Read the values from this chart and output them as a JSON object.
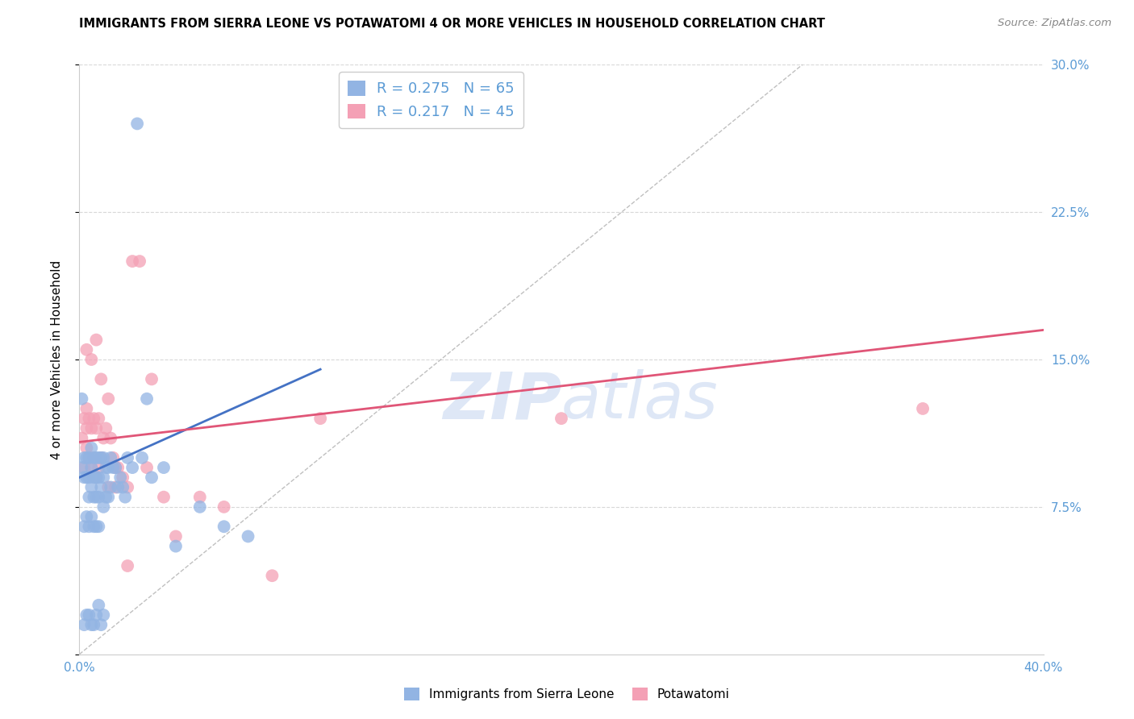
{
  "title": "IMMIGRANTS FROM SIERRA LEONE VS POTAWATOMI 4 OR MORE VEHICLES IN HOUSEHOLD CORRELATION CHART",
  "source": "Source: ZipAtlas.com",
  "ylabel": "4 or more Vehicles in Household",
  "xlim": [
    0.0,
    0.4
  ],
  "ylim": [
    0.0,
    0.3
  ],
  "xticks": [
    0.0,
    0.05,
    0.1,
    0.15,
    0.2,
    0.25,
    0.3,
    0.35,
    0.4
  ],
  "yticks": [
    0.0,
    0.075,
    0.15,
    0.225,
    0.3
  ],
  "blue_R": 0.275,
  "blue_N": 65,
  "pink_R": 0.217,
  "pink_N": 45,
  "blue_color": "#92b4e3",
  "pink_color": "#f4a0b5",
  "blue_line_color": "#4472c4",
  "pink_line_color": "#e05577",
  "diagonal_color": "#b0b0b0",
  "grid_color": "#d8d8d8",
  "tick_color": "#5b9bd5",
  "watermark_color": "#c8d8f0",
  "blue_line_x": [
    0.0,
    0.1
  ],
  "blue_line_y": [
    0.09,
    0.145
  ],
  "pink_line_x": [
    0.0,
    0.4
  ],
  "pink_line_y": [
    0.108,
    0.165
  ],
  "blue_scatter_x": [
    0.001,
    0.001,
    0.002,
    0.002,
    0.002,
    0.003,
    0.003,
    0.003,
    0.004,
    0.004,
    0.004,
    0.004,
    0.005,
    0.005,
    0.005,
    0.005,
    0.006,
    0.006,
    0.006,
    0.006,
    0.007,
    0.007,
    0.007,
    0.007,
    0.008,
    0.008,
    0.008,
    0.008,
    0.009,
    0.009,
    0.01,
    0.01,
    0.01,
    0.011,
    0.011,
    0.012,
    0.012,
    0.013,
    0.013,
    0.014,
    0.015,
    0.016,
    0.017,
    0.018,
    0.019,
    0.02,
    0.022,
    0.024,
    0.026,
    0.028,
    0.03,
    0.035,
    0.04,
    0.05,
    0.06,
    0.07,
    0.002,
    0.003,
    0.004,
    0.005,
    0.006,
    0.007,
    0.008,
    0.009,
    0.01
  ],
  "blue_scatter_y": [
    0.13,
    0.095,
    0.1,
    0.09,
    0.065,
    0.1,
    0.09,
    0.07,
    0.1,
    0.09,
    0.08,
    0.065,
    0.105,
    0.095,
    0.085,
    0.07,
    0.1,
    0.09,
    0.08,
    0.065,
    0.1,
    0.09,
    0.08,
    0.065,
    0.1,
    0.09,
    0.08,
    0.065,
    0.1,
    0.085,
    0.1,
    0.09,
    0.075,
    0.095,
    0.08,
    0.095,
    0.08,
    0.1,
    0.085,
    0.095,
    0.095,
    0.085,
    0.09,
    0.085,
    0.08,
    0.1,
    0.095,
    0.27,
    0.1,
    0.13,
    0.09,
    0.095,
    0.055,
    0.075,
    0.065,
    0.06,
    0.015,
    0.02,
    0.02,
    0.015,
    0.015,
    0.02,
    0.025,
    0.015,
    0.02
  ],
  "pink_scatter_x": [
    0.001,
    0.002,
    0.002,
    0.003,
    0.003,
    0.003,
    0.004,
    0.004,
    0.005,
    0.005,
    0.006,
    0.006,
    0.007,
    0.007,
    0.008,
    0.008,
    0.009,
    0.01,
    0.011,
    0.012,
    0.013,
    0.014,
    0.015,
    0.016,
    0.018,
    0.02,
    0.022,
    0.025,
    0.028,
    0.03,
    0.035,
    0.04,
    0.05,
    0.06,
    0.08,
    0.1,
    0.2,
    0.35,
    0.003,
    0.005,
    0.007,
    0.009,
    0.012,
    0.015,
    0.02
  ],
  "pink_scatter_y": [
    0.11,
    0.12,
    0.095,
    0.125,
    0.115,
    0.105,
    0.12,
    0.1,
    0.115,
    0.095,
    0.12,
    0.1,
    0.115,
    0.09,
    0.12,
    0.095,
    0.1,
    0.11,
    0.115,
    0.13,
    0.11,
    0.1,
    0.095,
    0.095,
    0.09,
    0.085,
    0.2,
    0.2,
    0.095,
    0.14,
    0.08,
    0.06,
    0.08,
    0.075,
    0.04,
    0.12,
    0.12,
    0.125,
    0.155,
    0.15,
    0.16,
    0.14,
    0.085,
    0.085,
    0.045
  ]
}
